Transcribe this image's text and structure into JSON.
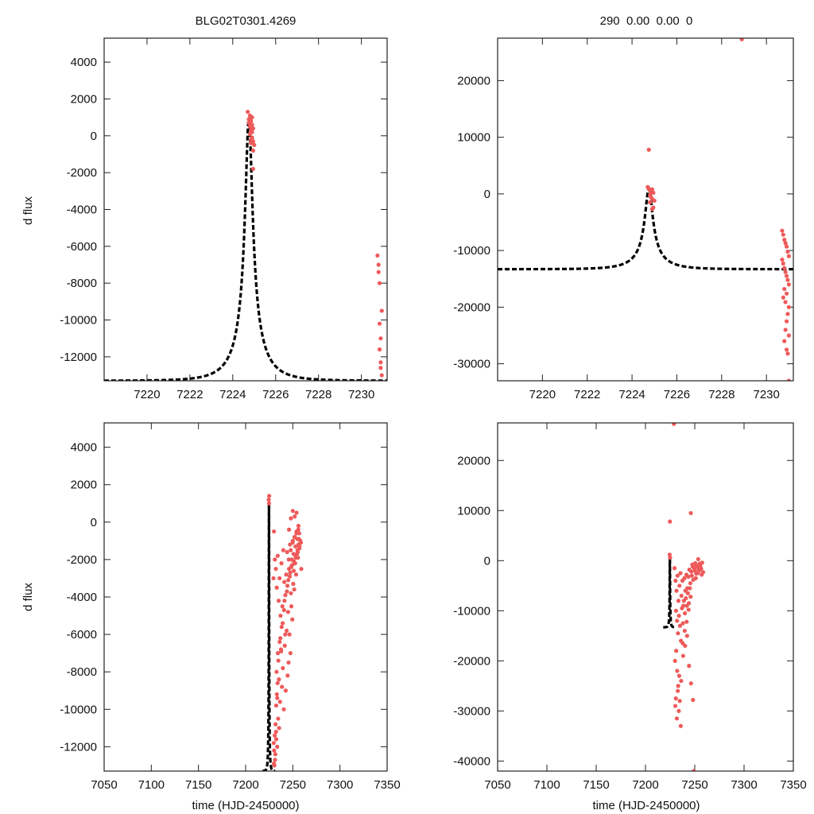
{
  "chart_data": [
    {
      "id": "top-left",
      "type": "scatter",
      "title": "BLG02T0301.4269",
      "xlabel": "",
      "ylabel": "d flux",
      "xlim": [
        7218.0,
        7231.2
      ],
      "ylim": [
        -13300,
        5300
      ],
      "xticks": [
        7220,
        7222,
        7224,
        7226,
        7228,
        7230
      ],
      "yticks": [
        4000,
        2000,
        0,
        -2000,
        -4000,
        -6000,
        -8000,
        -10000,
        -12000
      ],
      "model": {
        "name": "model",
        "color": "#000000",
        "style": "dashed",
        "t0": 7224.75,
        "peak": 1000,
        "base": -13300,
        "u0": 0.12,
        "tE": 1.37
      },
      "series": [
        {
          "name": "data",
          "color": "#ee5a5a",
          "x": [
            7224.7,
            7224.75,
            7224.8,
            7224.85,
            7224.9,
            7224.75,
            7224.8,
            7224.85,
            7224.9,
            7224.95,
            7224.8,
            7224.85,
            7224.9,
            7224.95,
            7224.85,
            7225.0,
            7224.9,
            7224.95,
            7224.95,
            7230.75,
            7230.8,
            7230.85,
            7230.8,
            7230.85,
            7230.95,
            7230.9,
            7230.85,
            7230.9,
            7230.9,
            7230.95
          ],
          "y": [
            1300,
            900,
            1100,
            800,
            1000,
            700,
            500,
            300,
            600,
            400,
            100,
            -200,
            200,
            -300,
            -400,
            -500,
            -100,
            -800,
            -1800,
            -6500,
            -7400,
            -8000,
            -7000,
            -10200,
            -9500,
            -11000,
            -11600,
            -12600,
            -12300,
            -13000
          ]
        }
      ]
    },
    {
      "id": "top-right",
      "type": "scatter",
      "title": "290  0.00  0.00  0",
      "xlabel": "",
      "ylabel": "",
      "xlim": [
        7218.0,
        7231.2
      ],
      "ylim": [
        -33000,
        27500
      ],
      "xticks": [
        7220,
        7222,
        7224,
        7226,
        7228,
        7230
      ],
      "yticks": [
        20000,
        10000,
        0,
        -10000,
        -20000,
        -30000
      ],
      "model": {
        "name": "model",
        "color": "#000000",
        "style": "dashed",
        "t0": 7224.75,
        "peak": 1000,
        "base": -13300,
        "u0": 0.12,
        "tE": 1.37
      },
      "series": [
        {
          "name": "data",
          "color": "#ee5a5a",
          "x": [
            7228.9,
            7224.75,
            7224.7,
            7224.75,
            7224.8,
            7224.85,
            7224.9,
            7224.8,
            7224.85,
            7224.95,
            7224.9,
            7224.8,
            7225.0,
            7224.95,
            7224.9,
            7230.7,
            7230.75,
            7230.8,
            7230.85,
            7230.9,
            7230.95,
            7231.0,
            7230.7,
            7230.75,
            7230.8,
            7230.85,
            7230.9,
            7230.95,
            7231.0,
            7230.8,
            7230.9,
            7230.75,
            7230.85,
            7231.0,
            7230.95,
            7230.9,
            7230.85,
            7231.0,
            7230.8,
            7230.9,
            7230.95,
            7231.0
          ],
          "y": [
            27300,
            7800,
            1200,
            900,
            600,
            300,
            800,
            -200,
            -600,
            200,
            -900,
            -1500,
            -1200,
            -2400,
            -2700,
            -6500,
            -7200,
            -8100,
            -8700,
            -9300,
            -10200,
            -11000,
            -11600,
            -12300,
            -13100,
            -13800,
            -14500,
            -15200,
            -16000,
            -16800,
            -17600,
            -18300,
            -19100,
            -20000,
            -21200,
            -22500,
            -24000,
            -25000,
            -26000,
            -27500,
            -28200,
            -33000
          ]
        }
      ]
    },
    {
      "id": "bottom-left",
      "type": "scatter",
      "title": "",
      "xlabel": "time (HJD-2450000)",
      "ylabel": "d flux",
      "xlim": [
        7050,
        7350
      ],
      "ylim": [
        -13300,
        5300
      ],
      "xticks": [
        7050,
        7100,
        7150,
        7200,
        7250,
        7300,
        7350
      ],
      "yticks": [
        4000,
        2000,
        0,
        -2000,
        -4000,
        -6000,
        -8000,
        -10000,
        -12000
      ],
      "model": {
        "name": "model",
        "color": "#000000",
        "style": "dashed",
        "t0": 7224.75,
        "peak": 1000,
        "base": -13300,
        "u0": 0.12,
        "tE": 1.37,
        "x_range": [
          7218,
          7231.2
        ]
      },
      "series": [
        {
          "name": "data",
          "color": "#ee5a5a",
          "x": [
            7224.5,
            7224.8,
            7225.0,
            7230.0,
            7231.0,
            7229.5,
            7232.0,
            7233.0,
            7234.0,
            7235.0,
            7236.0,
            7237.0,
            7238.0,
            7239.0,
            7240.0,
            7241.0,
            7242.0,
            7243.0,
            7244.0,
            7245.0,
            7246.0,
            7247.0,
            7248.0,
            7249.0,
            7250.0,
            7251.0,
            7252.0,
            7253.0,
            7254.0,
            7255.0,
            7256.0,
            7257.0,
            7258.0,
            7259.0,
            7247.5,
            7249.5,
            7251.5,
            7253.5,
            7255.5,
            7246.5,
            7248.5,
            7250.5,
            7252.5,
            7254.5,
            7256.5,
            7245.5,
            7244.5,
            7243.5,
            7242.5,
            7241.5,
            7240.5,
            7239.5,
            7238.5,
            7237.5,
            7236.5,
            7235.5,
            7234.5,
            7233.5,
            7232.5,
            7231.5,
            7230.5,
            7232.8,
            7234.2,
            7236.8,
            7238.2,
            7241.2,
            7243.8,
            7245.2,
            7247.2,
            7249.2,
            7251.2,
            7253.2,
            7255.2,
            7257.2,
            7258.5,
            7246.0,
            7248.0,
            7250.0,
            7252.0,
            7254.0,
            7256.0,
            7233.5,
            7232.2,
            7231.2,
            7230.2,
            7229.8,
            7233.9,
            7231.7,
            7229.9,
            7232.4,
            7234.7,
            7236.1,
            7230.9,
            7233.1,
            7235.3,
            7237.7,
            7239.3,
            7240.7,
            7242.1,
            7244.3,
            7246.8,
            7248.3,
            7250.8,
            7252.8,
            7254.8,
            7256.8,
            7245.8,
            7247.8,
            7249.8,
            7251.8,
            7253.8,
            7255.8
          ],
          "y": [
            1200,
            1000,
            1400,
            -500,
            -2000,
            -3000,
            -2500,
            -3500,
            -1800,
            -4200,
            -3000,
            -5000,
            -2200,
            -4500,
            -1500,
            -3200,
            -6000,
            -2800,
            -1600,
            -4800,
            -2500,
            -1200,
            -3800,
            -2000,
            -1000,
            -2600,
            -800,
            -1800,
            -500,
            -1500,
            -1200,
            -1400,
            -1000,
            -2500,
            -7000,
            -5200,
            -3600,
            -2800,
            -1900,
            -6000,
            -4500,
            -3300,
            -2200,
            -1700,
            -900,
            -7500,
            -8200,
            -5800,
            -9000,
            -6600,
            -10000,
            -7800,
            -8800,
            -6800,
            -9600,
            -11000,
            -10500,
            -9400,
            -11600,
            -12400,
            -13000,
            -8000,
            -7000,
            -6200,
            -5600,
            -4200,
            -3700,
            -3100,
            -2700,
            -2300,
            -2100,
            -1900,
            -1600,
            -1300,
            -1100,
            -400,
            200,
            600,
            300,
            500,
            -200,
            -12000,
            -11200,
            -12700,
            -12200,
            -11800,
            -8600,
            -10800,
            -12900,
            -9800,
            -7400,
            -6400,
            -11400,
            -9200,
            -8400,
            -6900,
            -5400,
            -4700,
            -3900,
            -3400,
            -2900,
            -2400,
            -1700,
            -1300,
            -900,
            -600,
            -2000,
            -1500,
            -1100,
            -800,
            -600,
            -400
          ]
        }
      ]
    },
    {
      "id": "bottom-right",
      "type": "scatter",
      "title": "",
      "xlabel": "time (HJD-2450000)",
      "ylabel": "",
      "xlim": [
        7050,
        7350
      ],
      "ylim": [
        -42000,
        27500
      ],
      "xticks": [
        7050,
        7100,
        7150,
        7200,
        7250,
        7300,
        7350
      ],
      "yticks": [
        20000,
        10000,
        0,
        -10000,
        -20000,
        -30000,
        -40000
      ],
      "model": {
        "name": "model",
        "color": "#000000",
        "style": "dashed",
        "t0": 7224.75,
        "peak": 1000,
        "base": -13300,
        "u0": 0.12,
        "tE": 1.37,
        "x_range": [
          7218,
          7231.2
        ]
      },
      "series": [
        {
          "name": "data",
          "color": "#ee5a5a",
          "x": [
            7228.8,
            7224.8,
            7246.0,
            7249.0,
            7224.5,
            7225.0,
            7229.5,
            7230.5,
            7231.5,
            7232.5,
            7233.5,
            7234.5,
            7235.5,
            7236.5,
            7237.5,
            7238.5,
            7239.5,
            7240.5,
            7241.5,
            7242.5,
            7243.5,
            7244.5,
            7245.5,
            7246.5,
            7247.5,
            7248.5,
            7249.5,
            7250.5,
            7251.5,
            7252.5,
            7253.5,
            7254.5,
            7255.5,
            7256.5,
            7257.5,
            7258.5,
            7231.0,
            7232.0,
            7233.0,
            7234.0,
            7235.0,
            7236.0,
            7237.0,
            7238.0,
            7239.0,
            7240.0,
            7241.0,
            7242.0,
            7243.0,
            7244.0,
            7245.0,
            7247.0,
            7248.0,
            7250.0,
            7251.0,
            7252.0,
            7253.0,
            7254.0,
            7255.0,
            7256.0,
            7257.0,
            7230.0,
            7231.2,
            7232.2,
            7233.2,
            7234.2,
            7230.8,
            7232.8,
            7234.8,
            7236.2,
            7238.2,
            7240.2,
            7242.2,
            7244.2,
            7246.2,
            7248.2,
            7233.8,
            7235.8,
            7231.8,
            7230.3,
            7237.8,
            7239.8,
            7241.8,
            7243.8,
            7245.8
          ],
          "y": [
            27300,
            7800,
            9500,
            -42000,
            1200,
            600,
            -1500,
            -4000,
            -6000,
            -3000,
            -8000,
            -5000,
            -2500,
            -7000,
            -4000,
            -9000,
            -3500,
            -6000,
            -2800,
            -5500,
            -3200,
            -1800,
            -4500,
            -2200,
            -800,
            -3800,
            -1500,
            -500,
            -2600,
            -1200,
            300,
            -2000,
            -900,
            -1600,
            -400,
            -2300,
            -10000,
            -12000,
            -14500,
            -11000,
            -13000,
            -16000,
            -9500,
            -12500,
            -8000,
            -10500,
            -7500,
            -9000,
            -6500,
            -8500,
            -5500,
            -3000,
            -1200,
            -2000,
            -3500,
            -1000,
            -2500,
            -1800,
            -600,
            -1400,
            -2800,
            -20000,
            -18000,
            -22000,
            -25000,
            -23000,
            -27500,
            -26000,
            -28000,
            -24000,
            -19000,
            -17000,
            -15000,
            -21000,
            -24500,
            -27800,
            -30000,
            -33000,
            -31500,
            -29000,
            -16500,
            -14000,
            -12200,
            -9800,
            -7200
          ]
        }
      ]
    }
  ]
}
